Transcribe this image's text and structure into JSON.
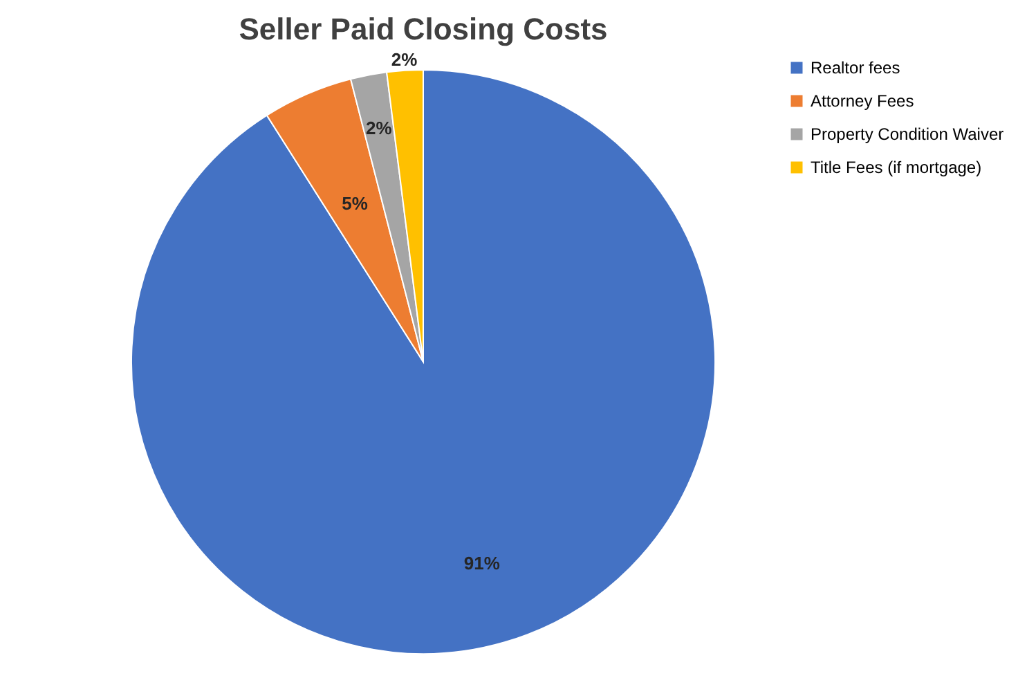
{
  "chart_data": {
    "type": "pie",
    "title": "Seller Paid Closing Costs",
    "categories": [
      "Realtor fees",
      "Attorney Fees",
      "Property Condition Waiver",
      "Title Fees (if mortgage)"
    ],
    "values": [
      91,
      5,
      2,
      2
    ],
    "colors": [
      "#4472c4",
      "#ed7d31",
      "#a5a5a5",
      "#ffc000"
    ],
    "value_labels": [
      "91%",
      "5%",
      "2%",
      "2%"
    ],
    "legend": "right"
  }
}
